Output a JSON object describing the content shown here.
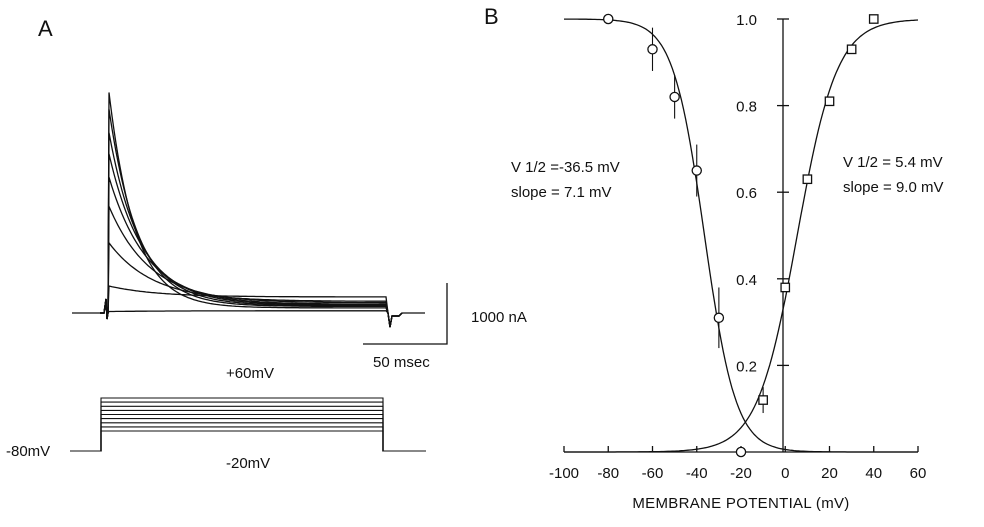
{
  "chart_data": [
    {
      "panel": "A",
      "type": "line",
      "title": "",
      "series": [
        {
          "values": [
            3.02,
            0.07
          ]
        },
        {
          "values": [
            2.79,
            0.09
          ]
        },
        {
          "values": [
            2.47,
            0.1
          ]
        },
        {
          "values": [
            2.18,
            0.11
          ]
        },
        {
          "values": [
            1.86,
            0.12
          ]
        },
        {
          "values": [
            1.46,
            0.14
          ]
        },
        {
          "values": [
            0.96,
            0.16
          ]
        },
        {
          "values": [
            0.37,
            0.22
          ]
        },
        {
          "values": [
            0.02,
            0.03
          ]
        }
      ],
      "scale_bar": {
        "current_label": "1000 nA",
        "time_label": "50 msec"
      },
      "protocol": {
        "holding_label": "-80mV",
        "high_label": "+60mV",
        "low_label": "-20mV",
        "step_levels_mV": [
          -20,
          -10,
          0,
          10,
          20,
          30,
          40,
          50,
          60
        ]
      }
    },
    {
      "panel": "B",
      "type": "scatter",
      "title": "",
      "xlabel": "MEMBRANE POTENTIAL (mV)",
      "ylabel": "",
      "xlim": [
        -100,
        60
      ],
      "ylim": [
        0,
        1.0
      ],
      "x_ticks": [
        -100,
        -80,
        -60,
        -40,
        -20,
        0,
        20,
        40,
        60
      ],
      "y_ticks": [
        0.2,
        0.4,
        0.6,
        0.8,
        1.0
      ],
      "y_tick_labels": [
        "0.2",
        "0.4",
        "0.6",
        "0.8",
        "1.0"
      ],
      "grid": false,
      "series": [
        {
          "marker": "circle",
          "points": [
            {
              "x": -80,
              "y": 1.0
            },
            {
              "x": -60,
              "y": 0.93,
              "err": 0.05
            },
            {
              "x": -50,
              "y": 0.82,
              "err": 0.05
            },
            {
              "x": -40,
              "y": 0.65,
              "err": 0.06
            },
            {
              "x": -30,
              "y": 0.31,
              "err": 0.07
            },
            {
              "x": -20,
              "y": 0.0
            }
          ],
          "fit": {
            "v_half": -36.5,
            "slope": 7.1,
            "kind": "inactivation"
          },
          "annotation": {
            "line1": "V 1/2 =-36.5 mV",
            "line2": "slope = 7.1 mV"
          }
        },
        {
          "marker": "square",
          "points": [
            {
              "x": -10,
              "y": 0.12,
              "err": 0.03
            },
            {
              "x": 0,
              "y": 0.38
            },
            {
              "x": 10,
              "y": 0.63
            },
            {
              "x": 20,
              "y": 0.81
            },
            {
              "x": 30,
              "y": 0.93
            },
            {
              "x": 40,
              "y": 1.0
            }
          ],
          "fit": {
            "v_half": 5.4,
            "slope": 9.0,
            "kind": "activation"
          },
          "annotation": {
            "line1": "V 1/2 = 5.4 mV",
            "line2": "slope = 9.0 mV"
          }
        }
      ]
    }
  ]
}
